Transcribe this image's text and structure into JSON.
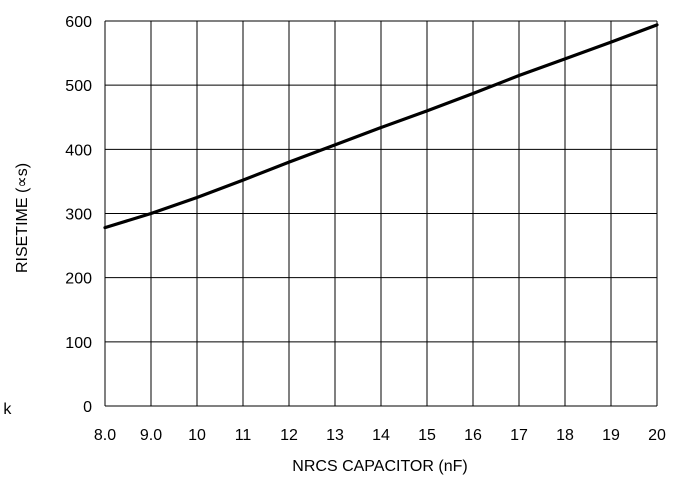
{
  "chart_data": {
    "type": "line",
    "title": "",
    "xlabel": "NRCS CAPACITOR (nF)",
    "ylabel": "RISETIME (∝s)",
    "x_tick_labels": [
      "8.0",
      "9.0",
      "10",
      "11",
      "12",
      "13",
      "14",
      "15",
      "16",
      "17",
      "18",
      "19",
      "20"
    ],
    "y_tick_labels": [
      "0",
      "100",
      "200",
      "300",
      "400",
      "500",
      "600"
    ],
    "x_ticks": [
      8,
      9,
      10,
      11,
      12,
      13,
      14,
      15,
      16,
      17,
      18,
      19,
      20
    ],
    "y_ticks": [
      0,
      100,
      200,
      300,
      400,
      500,
      600
    ],
    "xlim": [
      8,
      20
    ],
    "ylim": [
      0,
      600
    ],
    "grid": true,
    "left_edge_text": "0 k",
    "series": [
      {
        "x": [
          8,
          9,
          10,
          11,
          12,
          13,
          14,
          15,
          16,
          17,
          18,
          19,
          20
        ],
        "y": [
          278,
          300,
          325,
          352,
          380,
          407,
          434,
          460,
          487,
          515,
          541,
          567,
          594
        ]
      }
    ]
  }
}
